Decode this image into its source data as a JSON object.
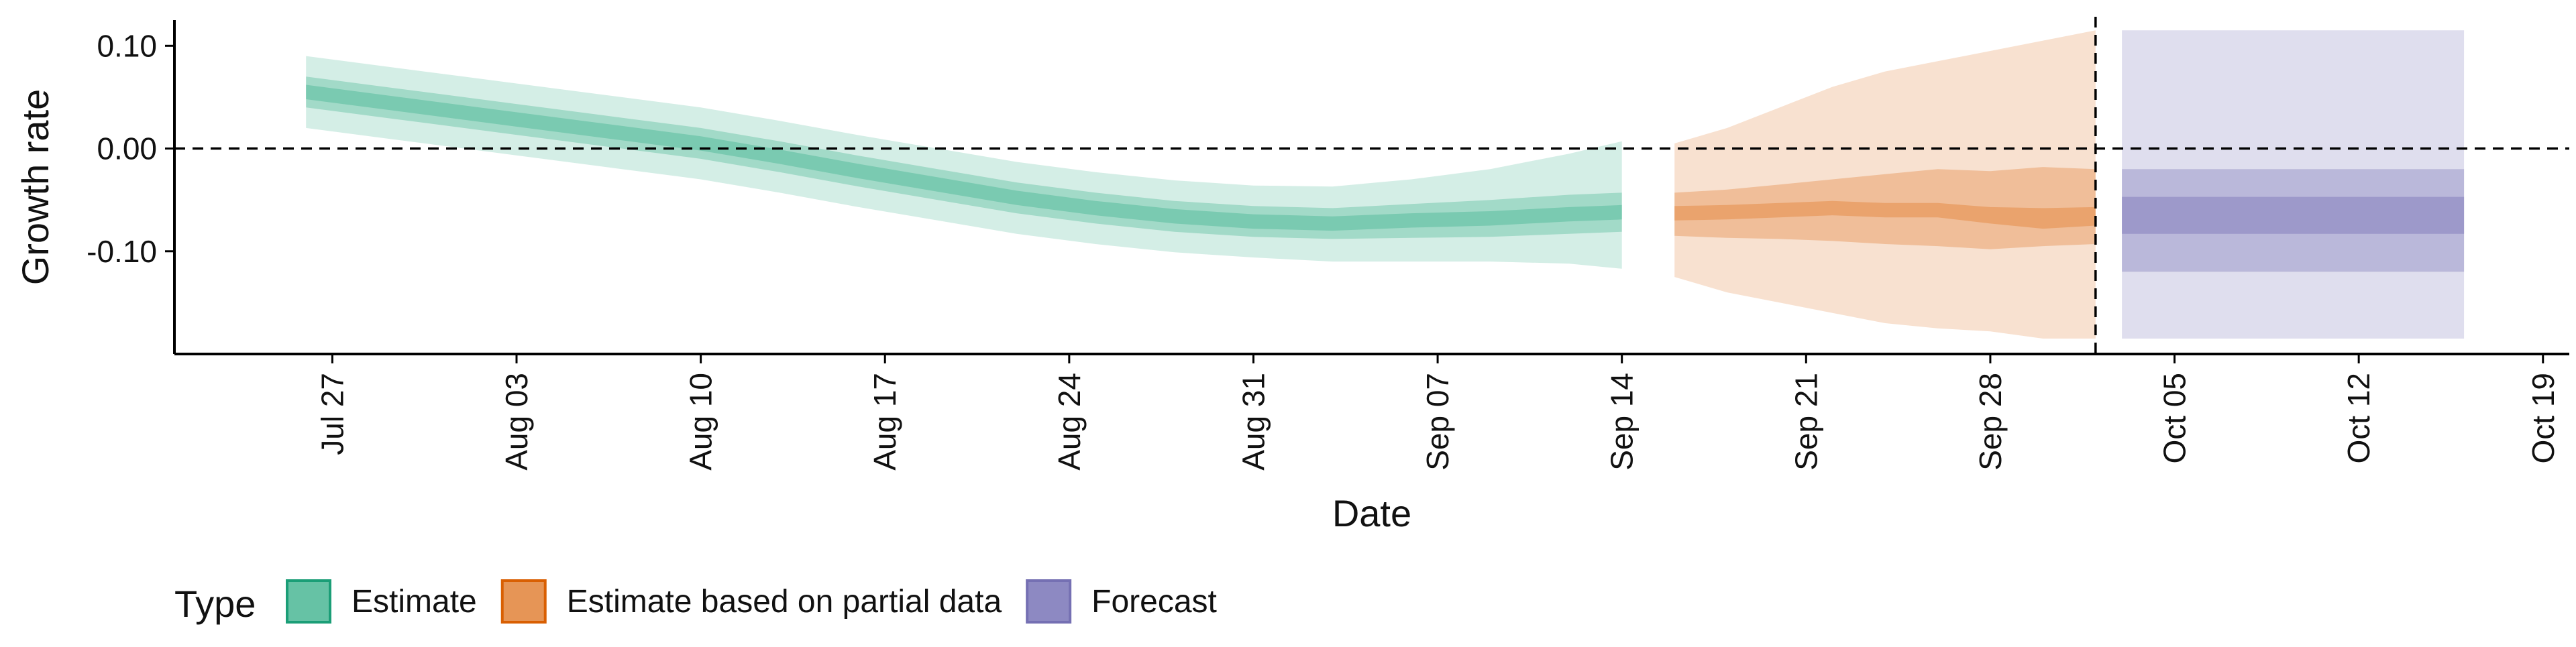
{
  "chart_data": {
    "type": "area",
    "title": "",
    "xlabel": "Date",
    "ylabel": "Growth rate",
    "ylim": [
      -0.2,
      0.125
    ],
    "xlim": [
      "2020-07-21",
      "2020-10-20"
    ],
    "x_ticks": [
      "2020-07-27",
      "2020-08-03",
      "2020-08-10",
      "2020-08-17",
      "2020-08-24",
      "2020-08-31",
      "2020-09-07",
      "2020-09-14",
      "2020-09-21",
      "2020-09-28",
      "2020-10-05",
      "2020-10-12",
      "2020-10-19"
    ],
    "x_tick_labels": [
      "Jul 27",
      "Aug 03",
      "Aug 10",
      "Aug 17",
      "Aug 24",
      "Aug 31",
      "Sep 07",
      "Sep 14",
      "Sep 21",
      "Sep 28",
      "Oct 05",
      "Oct 12",
      "Oct 19"
    ],
    "y_ticks": [
      0.1,
      0.0,
      -0.1
    ],
    "y_tick_labels": [
      "0.10",
      "0.00",
      "-0.10"
    ],
    "reference_lines": {
      "horizontal_y": 0.0,
      "vertical_date": "2020-10-02",
      "style": "dashed"
    },
    "grid": false,
    "legend": {
      "title": "Type",
      "placement": "bottom-left"
    },
    "series": [
      {
        "name": "Estimate",
        "color": "#1b9e77",
        "fill": "#66c2a5",
        "x": [
          "2020-07-26",
          "2020-07-29",
          "2020-08-01",
          "2020-08-04",
          "2020-08-07",
          "2020-08-10",
          "2020-08-13",
          "2020-08-16",
          "2020-08-19",
          "2020-08-22",
          "2020-08-25",
          "2020-08-28",
          "2020-08-31",
          "2020-09-03",
          "2020-09-06",
          "2020-09-09",
          "2020-09-12",
          "2020-09-14"
        ],
        "median": [
          0.055,
          0.045,
          0.035,
          0.025,
          0.015,
          0.005,
          -0.008,
          -0.022,
          -0.035,
          -0.048,
          -0.058,
          -0.066,
          -0.071,
          -0.073,
          -0.07,
          -0.068,
          -0.064,
          -0.062
        ],
        "lower_20": [
          0.048,
          0.038,
          0.028,
          0.018,
          0.008,
          -0.002,
          -0.015,
          -0.029,
          -0.042,
          -0.055,
          -0.065,
          -0.073,
          -0.078,
          -0.08,
          -0.077,
          -0.075,
          -0.071,
          -0.069
        ],
        "upper_20": [
          0.062,
          0.052,
          0.042,
          0.032,
          0.022,
          0.012,
          -0.001,
          -0.015,
          -0.028,
          -0.041,
          -0.051,
          -0.059,
          -0.064,
          -0.066,
          -0.063,
          -0.061,
          -0.057,
          -0.055
        ],
        "lower_50": [
          0.04,
          0.03,
          0.02,
          0.01,
          0.0,
          -0.01,
          -0.023,
          -0.037,
          -0.05,
          -0.063,
          -0.073,
          -0.081,
          -0.086,
          -0.088,
          -0.087,
          -0.086,
          -0.083,
          -0.081
        ],
        "upper_50": [
          0.07,
          0.06,
          0.05,
          0.04,
          0.03,
          0.02,
          0.007,
          -0.007,
          -0.02,
          -0.033,
          -0.043,
          -0.051,
          -0.056,
          -0.058,
          -0.054,
          -0.05,
          -0.045,
          -0.043
        ],
        "lower_90": [
          0.02,
          0.01,
          0.0,
          -0.01,
          -0.02,
          -0.03,
          -0.043,
          -0.057,
          -0.07,
          -0.083,
          -0.093,
          -0.101,
          -0.106,
          -0.11,
          -0.11,
          -0.11,
          -0.112,
          -0.117
        ],
        "upper_90": [
          0.09,
          0.08,
          0.07,
          0.06,
          0.05,
          0.04,
          0.027,
          0.013,
          0.0,
          -0.013,
          -0.023,
          -0.031,
          -0.036,
          -0.037,
          -0.03,
          -0.02,
          -0.005,
          0.007
        ]
      },
      {
        "name": "Estimate based on partial data",
        "color": "#d95f02",
        "fill": "#e69556",
        "x": [
          "2020-09-16",
          "2020-09-18",
          "2020-09-20",
          "2020-09-22",
          "2020-09-24",
          "2020-09-26",
          "2020-09-28",
          "2020-09-30",
          "2020-10-02"
        ],
        "median": [
          -0.063,
          -0.062,
          -0.06,
          -0.058,
          -0.06,
          -0.06,
          -0.065,
          -0.068,
          -0.066
        ],
        "lower_20": [
          -0.07,
          -0.069,
          -0.067,
          -0.065,
          -0.067,
          -0.067,
          -0.073,
          -0.078,
          -0.075
        ],
        "upper_20": [
          -0.056,
          -0.055,
          -0.053,
          -0.051,
          -0.053,
          -0.053,
          -0.057,
          -0.058,
          -0.057
        ],
        "lower_50": [
          -0.085,
          -0.087,
          -0.088,
          -0.09,
          -0.093,
          -0.095,
          -0.098,
          -0.095,
          -0.093
        ],
        "upper_50": [
          -0.043,
          -0.04,
          -0.035,
          -0.03,
          -0.025,
          -0.02,
          -0.022,
          -0.018,
          -0.02
        ],
        "lower_90": [
          -0.125,
          -0.14,
          -0.15,
          -0.16,
          -0.17,
          -0.175,
          -0.178,
          -0.185,
          -0.185
        ],
        "upper_90": [
          0.005,
          0.02,
          0.04,
          0.06,
          0.075,
          0.085,
          0.095,
          0.105,
          0.115
        ]
      },
      {
        "name": "Forecast",
        "color": "#7570b3",
        "fill": "#8d89c2",
        "x": [
          "2020-10-03",
          "2020-10-16"
        ],
        "median": [
          -0.065,
          -0.065
        ],
        "lower_20": [
          -0.083,
          -0.083
        ],
        "upper_20": [
          -0.047,
          -0.047
        ],
        "lower_50": [
          -0.12,
          -0.12
        ],
        "upper_50": [
          -0.02,
          -0.02
        ],
        "lower_90": [
          -0.185,
          -0.185
        ],
        "upper_90": [
          0.115,
          0.115
        ]
      }
    ]
  }
}
